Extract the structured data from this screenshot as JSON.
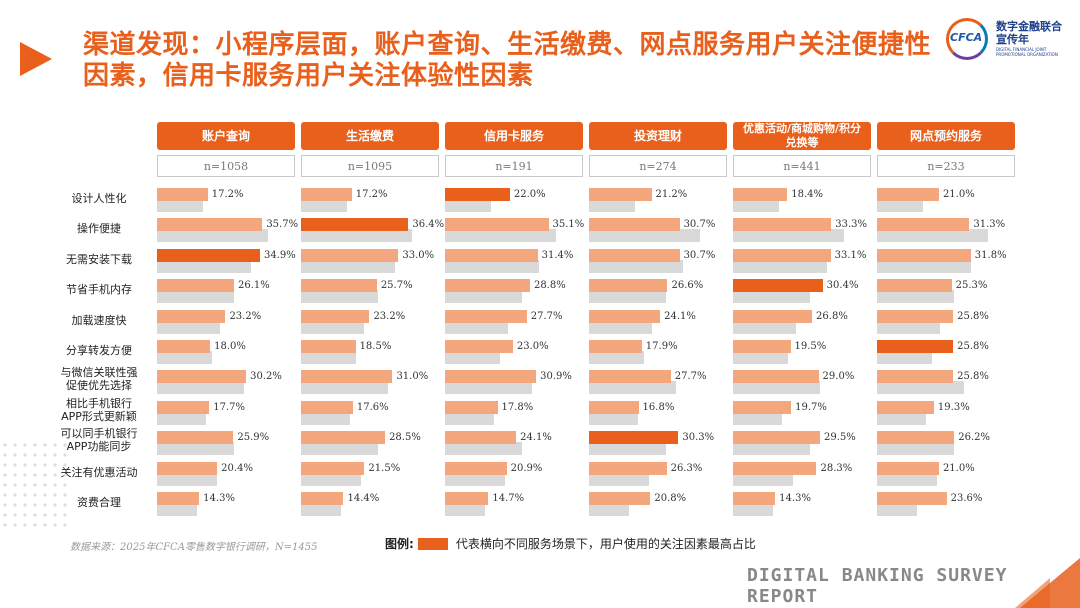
{
  "title": "渠道发现：小程序层面，账户查询、生活缴费、网点服务用户关注便捷性因素，信用卡服务用户关注体验性因素",
  "logo": {
    "mark": "CFCA",
    "cn": "数字金融联合宣传年",
    "en": "DIGITAL FINANCIAL JOINT PROMOTIONAL ORGANIZATION"
  },
  "chart_data": {
    "type": "bar",
    "categories": [
      "设计人性化",
      "操作便捷",
      "无需安装下载",
      "节省手机内存",
      "加载速度快",
      "分享转发方便",
      "与微信关联性强促使优先选择",
      "相比手机银行APP形式更新颖",
      "可以同手机银行APP功能同步",
      "关注有优惠活动",
      "资费合理"
    ],
    "category_lines": [
      [
        "设计人性化"
      ],
      [
        "操作便捷"
      ],
      [
        "无需安装下载"
      ],
      [
        "节省手机内存"
      ],
      [
        "加载速度快"
      ],
      [
        "分享转发方便"
      ],
      [
        "与微信关联性强",
        "促使优先选择"
      ],
      [
        "相比手机银行",
        "APP形式更新颖"
      ],
      [
        "可以同手机银行",
        "APP功能同步"
      ],
      [
        "关注有优惠活动"
      ],
      [
        "资费合理"
      ]
    ],
    "xlim": [
      0,
      40
    ],
    "series": [
      {
        "name": "账户查询",
        "n": "n=1058",
        "values": [
          17.2,
          35.7,
          34.9,
          26.1,
          23.2,
          18.0,
          30.2,
          17.7,
          25.9,
          20.4,
          14.3
        ],
        "labels": [
          "17.2%",
          "35.7%",
          "34.9%",
          "26.1%",
          "23.2%",
          "18.0%",
          "30.2%",
          "17.7%",
          "25.9%",
          "20.4%",
          "14.3%"
        ],
        "highlight": 2
      },
      {
        "name": "生活缴费",
        "n": "n=1095",
        "values": [
          17.2,
          36.4,
          33.0,
          25.7,
          23.2,
          18.5,
          31.0,
          17.6,
          28.5,
          21.5,
          14.4
        ],
        "labels": [
          "17.2%",
          "36.4%",
          "33.0%",
          "25.7%",
          "23.2%",
          "18.5%",
          "31.0%",
          "17.6%",
          "28.5%",
          "21.5%",
          "14.4%"
        ],
        "highlight": 1
      },
      {
        "name": "信用卡服务",
        "n": "n=191",
        "values": [
          22.0,
          35.1,
          31.4,
          28.8,
          27.7,
          23.0,
          30.9,
          17.8,
          24.1,
          20.9,
          14.7
        ],
        "labels": [
          "22.0%",
          "35.1%",
          "31.4%",
          "28.8%",
          "27.7%",
          "23.0%",
          "30.9%",
          "17.8%",
          "24.1%",
          "20.9%",
          "14.7%"
        ],
        "highlight": 0
      },
      {
        "name": "投资理财",
        "n": "n=274",
        "values": [
          21.2,
          30.7,
          30.7,
          26.6,
          24.1,
          17.9,
          27.7,
          16.8,
          30.3,
          26.3,
          20.8
        ],
        "labels": [
          "21.2%",
          "30.7%",
          "30.7%",
          "26.6%",
          "24.1%",
          "17.9%",
          "27.7%",
          "16.8%",
          "30.3%",
          "26.3%",
          "20.8%"
        ],
        "highlight": 8
      },
      {
        "name": "优惠活动/商城购物/积分兑换等",
        "n": "n=441",
        "values": [
          18.4,
          33.3,
          33.1,
          30.4,
          26.8,
          19.5,
          29.0,
          19.7,
          29.5,
          28.3,
          14.3
        ],
        "labels": [
          "18.4%",
          "33.3%",
          "33.1%",
          "30.4%",
          "26.8%",
          "19.5%",
          "29.0%",
          "19.7%",
          "29.5%",
          "28.3%",
          "14.3%"
        ],
        "highlight": 3
      },
      {
        "name": "网点预约服务",
        "n": "n=233",
        "values": [
          21.0,
          31.3,
          31.8,
          25.3,
          25.8,
          25.8,
          25.8,
          19.3,
          26.2,
          21.0,
          23.6
        ],
        "labels": [
          "21.0%",
          "31.3%",
          "31.8%",
          "25.3%",
          "25.8%",
          "25.8%",
          "25.8%",
          "19.3%",
          "26.2%",
          "21.0%",
          "23.6%"
        ],
        "highlight": 5
      }
    ],
    "reference_values": [
      15.5,
      37.5,
      32.0,
      26.0,
      21.5,
      18.5,
      29.5,
      16.5,
      26.0,
      20.5,
      13.5
    ],
    "legend": {
      "label": "图例:",
      "text": "代表横向不同服务场景下，用户使用的关注因素最高占比"
    },
    "source": "数据来源：2025年CFCA零售数字银行调研，N=1455"
  },
  "colors": {
    "accent": "#e8601c",
    "bar": "#f4a77c",
    "ref": "#d9d9d9"
  },
  "footer": "DIGITAL BANKING SURVEY REPORT"
}
